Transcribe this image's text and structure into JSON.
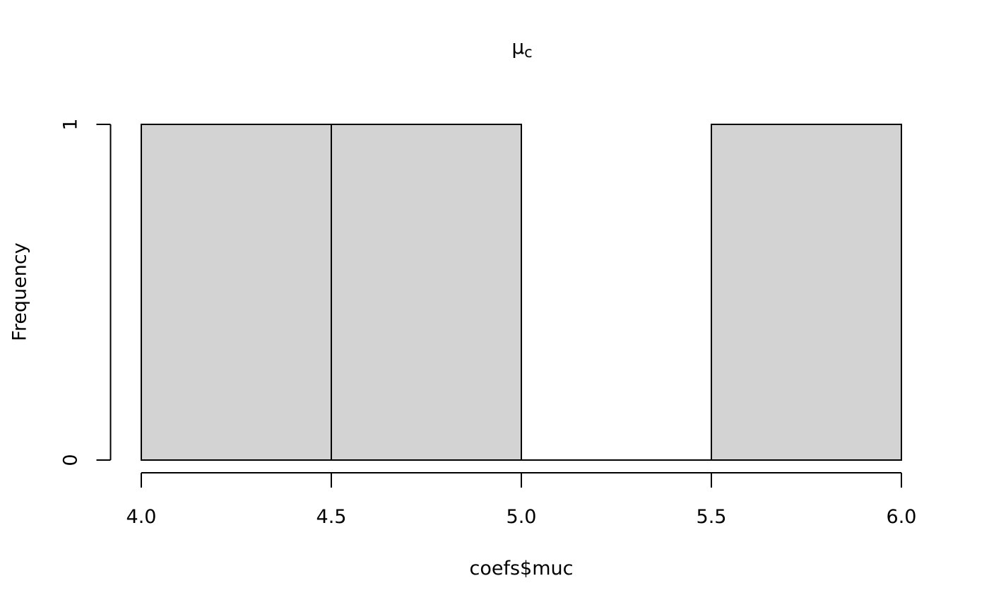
{
  "chart_data": {
    "type": "bar",
    "subtype": "histogram",
    "title": "μ_c",
    "title_parts": {
      "base": "μ",
      "sub": "c"
    },
    "xlabel": "coefs$muc",
    "ylabel": "Frequency",
    "bins": {
      "breaks": [
        4.0,
        4.5,
        5.0,
        5.5,
        6.0
      ],
      "counts": [
        1,
        1,
        0,
        1
      ]
    },
    "x_ticks": {
      "values": [
        4.0,
        4.5,
        5.0,
        5.5,
        6.0
      ],
      "labels": [
        "4.0",
        "4.5",
        "5.0",
        "5.5",
        "6.0"
      ]
    },
    "y_ticks": {
      "values": [
        0,
        1
      ],
      "labels": [
        "0",
        "1"
      ]
    },
    "xlim": [
      4.0,
      6.0
    ],
    "ylim": [
      0,
      1
    ],
    "grid": false,
    "legend": null,
    "colors": {
      "bar_fill": "#d3d3d3",
      "line": "#000000",
      "background": "#ffffff"
    }
  }
}
